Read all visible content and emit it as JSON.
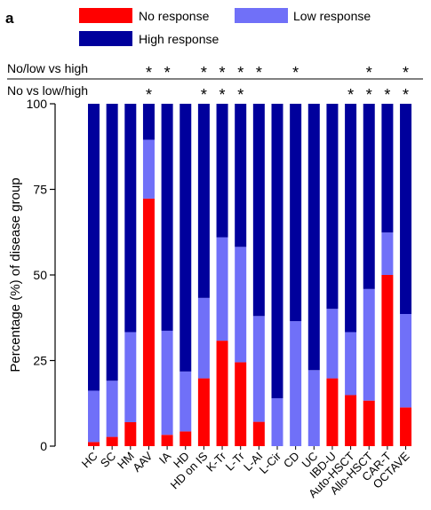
{
  "panel_label": "a",
  "chart_data": {
    "type": "bar",
    "stacked": true,
    "categories": [
      "HC",
      "SC",
      "HM",
      "AAV",
      "IA",
      "HD",
      "HD on IS",
      "K-Tr",
      "L-Tr",
      "L-AI",
      "L-Cir",
      "CD",
      "UC",
      "IBD-U",
      "Auto-HSCT",
      "Allo-HSCT",
      "CAR-T",
      "OCTAVE"
    ],
    "series": [
      {
        "name": "No response",
        "color": "#ff0000",
        "values": [
          1.2,
          2.7,
          7.0,
          72.3,
          3.3,
          4.3,
          19.8,
          30.8,
          24.5,
          7.1,
          0,
          0,
          0,
          19.8,
          14.9,
          13.3,
          50.0,
          11.3
        ]
      },
      {
        "name": "Low response",
        "color": "#7070f8",
        "values": [
          15.0,
          16.4,
          26.3,
          17.2,
          30.4,
          17.5,
          23.5,
          30.2,
          33.7,
          30.9,
          14.0,
          36.5,
          22.2,
          20.3,
          18.4,
          32.6,
          12.4,
          27.3
        ]
      },
      {
        "name": "High response",
        "color": "#00009c",
        "values": [
          83.8,
          80.9,
          66.7,
          10.5,
          66.3,
          78.2,
          56.7,
          39.0,
          41.8,
          62.0,
          86.0,
          63.5,
          77.8,
          59.9,
          66.7,
          54.1,
          37.6,
          61.4
        ]
      }
    ],
    "ylabel": "Percentage (%) of disease group",
    "xlabel": "",
    "ylim": [
      0,
      100
    ],
    "yticks": [
      0,
      25,
      50,
      75,
      100
    ],
    "legend_position": "top",
    "significance": [
      {
        "label": "No/low vs high",
        "marker": "*",
        "flags": [
          false,
          false,
          false,
          true,
          true,
          false,
          true,
          true,
          true,
          true,
          false,
          true,
          false,
          false,
          false,
          true,
          false,
          true
        ]
      },
      {
        "label": "No vs low/high",
        "marker": "*",
        "flags": [
          false,
          false,
          false,
          true,
          false,
          false,
          true,
          true,
          true,
          false,
          false,
          false,
          false,
          false,
          true,
          true,
          true,
          true
        ]
      }
    ]
  }
}
